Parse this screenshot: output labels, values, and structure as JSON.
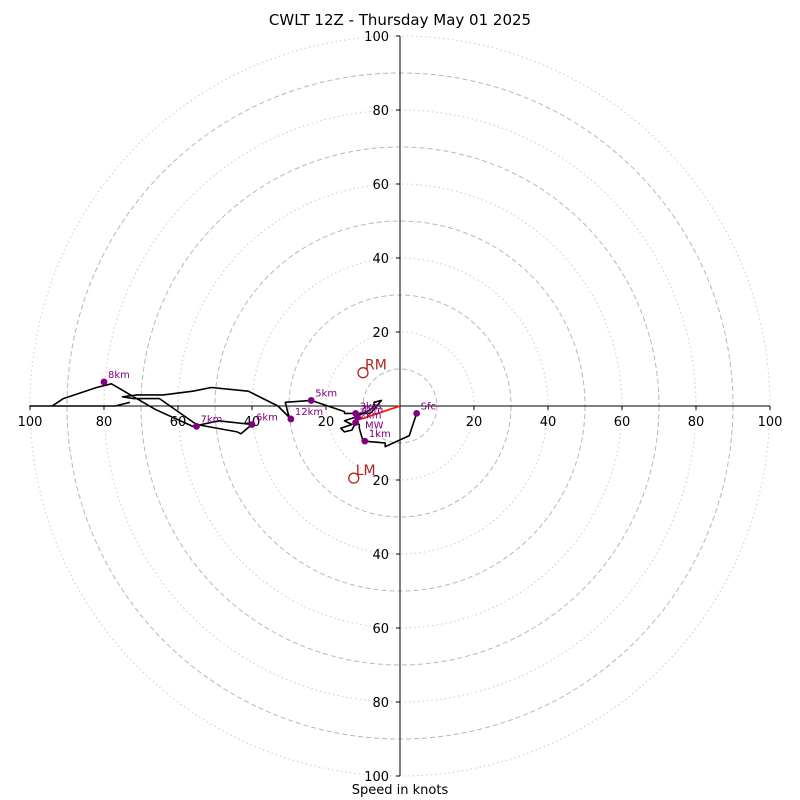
{
  "chart_data": {
    "type": "hodograph",
    "title": "CWLT 12Z - Thursday May 01 2025",
    "xlabel": "Speed in knots",
    "xlim": [
      -100,
      100
    ],
    "ylim": [
      -100,
      100
    ],
    "ring_speeds_dashed": [
      10,
      30,
      50,
      70,
      90
    ],
    "ring_speeds_dotted": [
      20,
      40,
      60,
      80,
      100
    ],
    "x_ticks": [
      {
        "value": -100,
        "label": "100"
      },
      {
        "value": -80,
        "label": "80"
      },
      {
        "value": -60,
        "label": "60"
      },
      {
        "value": -40,
        "label": "40"
      },
      {
        "value": -20,
        "label": "20"
      },
      {
        "value": 20,
        "label": "20"
      },
      {
        "value": 40,
        "label": "40"
      },
      {
        "value": 60,
        "label": "60"
      },
      {
        "value": 80,
        "label": "80"
      },
      {
        "value": 100,
        "label": "100"
      }
    ],
    "y_ticks": [
      {
        "value": 100,
        "label": "100"
      },
      {
        "value": 80,
        "label": "80"
      },
      {
        "value": 60,
        "label": "60"
      },
      {
        "value": 40,
        "label": "40"
      },
      {
        "value": 20,
        "label": "20"
      },
      {
        "value": -20,
        "label": "20"
      },
      {
        "value": -40,
        "label": "40"
      },
      {
        "value": -60,
        "label": "60"
      },
      {
        "value": -80,
        "label": "80"
      },
      {
        "value": -100,
        "label": "100"
      }
    ],
    "wind_profile": {
      "color": "#000000",
      "points": [
        [
          4.5,
          -2
        ],
        [
          2.5,
          -8
        ],
        [
          -4,
          -11
        ],
        [
          -4,
          -10
        ],
        [
          -10,
          -9.5
        ],
        [
          -11,
          -6
        ],
        [
          -11,
          -5
        ],
        [
          -12,
          -4.5
        ],
        [
          -13,
          -6.5
        ],
        [
          -15,
          -7
        ],
        [
          -16,
          -6
        ],
        [
          -13,
          -5
        ],
        [
          -15,
          -4
        ],
        [
          -12,
          -3
        ],
        [
          -8,
          -1
        ],
        [
          -7,
          0
        ],
        [
          -7,
          1
        ],
        [
          -5,
          1.5
        ],
        [
          -8,
          -2
        ],
        [
          -12,
          -2
        ],
        [
          -15,
          -2
        ],
        [
          -15,
          -1.5
        ],
        [
          -24,
          1.5
        ],
        [
          -31,
          1
        ],
        [
          -30,
          -3
        ],
        [
          -29,
          -4
        ],
        [
          -33,
          0
        ],
        [
          -41,
          4
        ],
        [
          -51,
          5
        ],
        [
          -56,
          4
        ],
        [
          -64,
          3
        ],
        [
          -71,
          3
        ],
        [
          -75,
          2.5
        ],
        [
          -72,
          2
        ],
        [
          -65,
          2
        ],
        [
          -55,
          -5
        ],
        [
          -44,
          -7
        ],
        [
          -43,
          -7.5
        ],
        [
          -40,
          -5
        ],
        [
          -49,
          -4
        ],
        [
          -56,
          -5.5
        ],
        [
          -66,
          -1
        ],
        [
          -78,
          6
        ],
        [
          -82,
          5
        ],
        [
          -91,
          2
        ],
        [
          -94,
          0
        ],
        [
          -100,
          0
        ],
        [
          -95,
          0
        ],
        [
          -77,
          0
        ],
        [
          -73,
          1
        ]
      ]
    },
    "markers": {
      "color": "#800080",
      "points": [
        {
          "label": "Sfc",
          "u": 4.5,
          "v": -2
        },
        {
          "label": "1km",
          "u": -9.5,
          "v": -9.5
        },
        {
          "label": "2km",
          "u": -12,
          "v": -4.5
        },
        {
          "label": "3km",
          "u": -12,
          "v": -2
        },
        {
          "label": "4km",
          "u": -11.5,
          "v": -3
        },
        {
          "label": "5km",
          "u": -24,
          "v": 1.5
        },
        {
          "label": "6km",
          "u": -40,
          "v": -5
        },
        {
          "label": "7km",
          "u": -55,
          "v": -5.5
        },
        {
          "label": "8km",
          "u": -80,
          "v": 6.5
        },
        {
          "label": "12km",
          "u": -29.5,
          "v": -3.5
        }
      ]
    },
    "mean_wind": {
      "label": "MW",
      "u": -10,
      "v": -5
    },
    "shear_vector": {
      "color": "#ff2200",
      "from": [
        0,
        0
      ],
      "to": [
        -12,
        -4
      ]
    },
    "storm_motion": {
      "color": "#b22222",
      "points": [
        {
          "label": "RM",
          "u": -10,
          "v": 9
        },
        {
          "label": "LM",
          "u": -12.5,
          "v": -19.5
        }
      ]
    }
  }
}
